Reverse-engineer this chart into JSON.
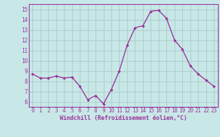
{
  "x": [
    0,
    1,
    2,
    3,
    4,
    5,
    6,
    7,
    8,
    9,
    10,
    11,
    12,
    13,
    14,
    15,
    16,
    17,
    18,
    19,
    20,
    21,
    22,
    23
  ],
  "y": [
    8.7,
    8.3,
    8.3,
    8.5,
    8.3,
    8.4,
    7.5,
    6.2,
    6.6,
    5.8,
    7.2,
    9.0,
    11.5,
    13.2,
    13.4,
    14.8,
    14.9,
    14.1,
    12.0,
    11.1,
    9.5,
    8.7,
    8.1,
    7.5
  ],
  "line_color": "#993399",
  "marker_color": "#993399",
  "bg_color": "#c8e8e8",
  "grid_color": "#b0d0d0",
  "xlabel": "Windchill (Refroidissement éolien,°C)",
  "xlabel_color": "#993399",
  "tick_color": "#993399",
  "ylim": [
    5.5,
    15.5
  ],
  "yticks": [
    6,
    7,
    8,
    9,
    10,
    11,
    12,
    13,
    14,
    15
  ],
  "xticks": [
    0,
    1,
    2,
    3,
    4,
    5,
    6,
    7,
    8,
    9,
    10,
    11,
    12,
    13,
    14,
    15,
    16,
    17,
    18,
    19,
    20,
    21,
    22,
    23
  ],
  "font_family": "monospace"
}
